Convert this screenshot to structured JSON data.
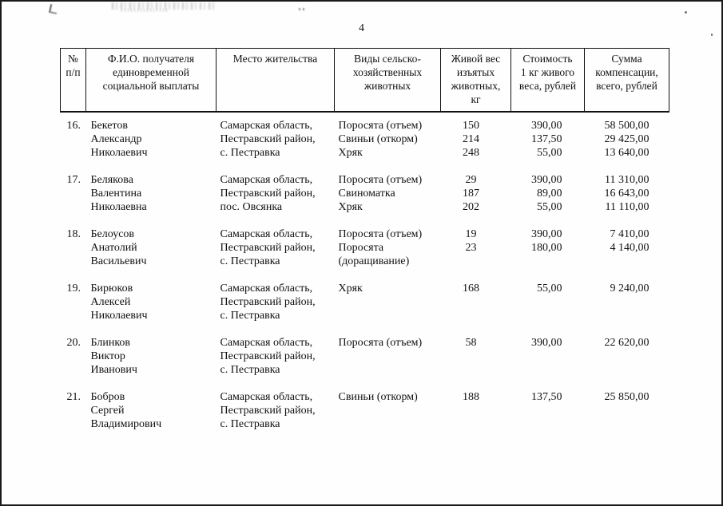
{
  "page": {
    "number": "4"
  },
  "table": {
    "headers": [
      "№\nп/п",
      "Ф.И.О. получателя\nединовременной\nсоциальной выплаты",
      "Место жительства",
      "Виды сельско-\nхозяйственных\nживотных",
      "Живой вес\nизъятых\nживотных,\nкг",
      "Стоимость\n1 кг живого\nвеса, рублей",
      "Сумма\nкомпенсации,\nвсего, рублей"
    ],
    "rows": [
      {
        "num": "16.",
        "name": [
          "Бекетов",
          "Александр",
          "Николаевич"
        ],
        "address": [
          "Самарская область,",
          "Пестравский район,",
          "с. Пестравка"
        ],
        "animals": [
          "Поросята (отъем)",
          "Свиньи (откорм)",
          "Хряк"
        ],
        "weights": [
          "150",
          "214",
          "248"
        ],
        "prices": [
          "390,00",
          "137,50",
          "55,00"
        ],
        "sums": [
          "58 500,00",
          "29 425,00",
          "13 640,00"
        ]
      },
      {
        "num": "17.",
        "name": [
          "Белякова",
          "Валентина",
          "Николаевна"
        ],
        "address": [
          "Самарская область,",
          "Пестравский район,",
          "пос. Овсянка"
        ],
        "animals": [
          "Поросята (отъем)",
          "Свиноматка",
          "Хряк"
        ],
        "weights": [
          "29",
          "187",
          "202"
        ],
        "prices": [
          "390,00",
          "89,00",
          "55,00"
        ],
        "sums": [
          "11 310,00",
          "16 643,00",
          "11 110,00"
        ]
      },
      {
        "num": "18.",
        "name": [
          "Белоусов",
          "Анатолий",
          "Васильевич"
        ],
        "address": [
          "Самарская область,",
          "Пестравский район,",
          "с. Пестравка"
        ],
        "animals": [
          "Поросята (отъем)",
          "Поросята",
          "(доращивание)"
        ],
        "weights": [
          "19",
          "23"
        ],
        "prices": [
          "390,00",
          "180,00"
        ],
        "sums": [
          "7 410,00",
          "4 140,00"
        ]
      },
      {
        "num": "19.",
        "name": [
          "Бирюков",
          "Алексей",
          "Николаевич"
        ],
        "address": [
          "Самарская область,",
          "Пестравский район,",
          "с. Пестравка"
        ],
        "animals": [
          "Хряк"
        ],
        "weights": [
          "168"
        ],
        "prices": [
          "55,00"
        ],
        "sums": [
          "9 240,00"
        ]
      },
      {
        "num": "20.",
        "name": [
          "Блинков",
          "Виктор",
          "Иванович"
        ],
        "address": [
          "Самарская область,",
          "Пестравский район,",
          "с. Пестравка"
        ],
        "animals": [
          "Поросята (отъем)"
        ],
        "weights": [
          "58"
        ],
        "prices": [
          "390,00"
        ],
        "sums": [
          "22 620,00"
        ]
      },
      {
        "num": "21.",
        "name": [
          "Бобров",
          "Сергей",
          "Владимирович"
        ],
        "address": [
          "Самарская область,",
          "Пестравский район,",
          "с. Пестравка"
        ],
        "animals": [
          "Свиньи (откорм)"
        ],
        "weights": [
          "188"
        ],
        "prices": [
          "137,50"
        ],
        "sums": [
          "25 850,00"
        ]
      }
    ]
  }
}
